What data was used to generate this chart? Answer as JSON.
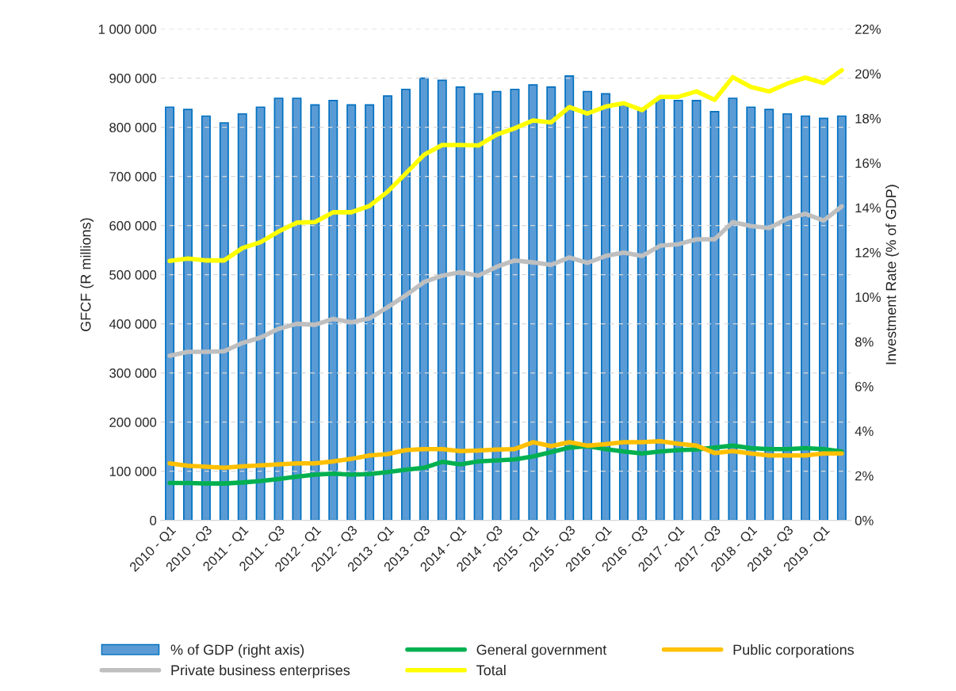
{
  "chart_data": {
    "type": "line",
    "ylabel": "GFCF (R millions)",
    "y2label": "Investment Rate (% of GDP)",
    "categories": [
      "2010 - Q1",
      null,
      "2010 - Q3",
      null,
      "2011 - Q1",
      null,
      "2011 - Q3",
      null,
      "2012 - Q1",
      null,
      "2012 - Q3",
      null,
      "2013 - Q1",
      null,
      "2013 - Q3",
      null,
      "2014 - Q1",
      null,
      "2014 - Q3",
      null,
      "2015 - Q1",
      null,
      "2015 - Q3",
      null,
      "2016 - Q1",
      null,
      "2016 - Q3",
      null,
      "2017 - Q1",
      null,
      "2017 - Q3",
      null,
      "2018 - Q1",
      null,
      "2018 - Q3",
      null,
      "2019 - Q1",
      null
    ],
    "series": [
      {
        "name": "% of GDP (right axis)",
        "type": "bar",
        "axis": "y2",
        "color": "#5b9bd5",
        "values": [
          18.5,
          18.4,
          18.1,
          17.8,
          18.2,
          18.5,
          18.9,
          18.9,
          18.6,
          18.8,
          18.6,
          18.6,
          19.0,
          19.3,
          19.8,
          19.7,
          19.4,
          19.1,
          19.2,
          19.3,
          19.5,
          19.4,
          19.9,
          19.2,
          19.1,
          18.6,
          18.4,
          18.9,
          18.8,
          18.8,
          18.3,
          18.9,
          18.5,
          18.4,
          18.2,
          18.1,
          18.0,
          18.1
        ]
      },
      {
        "name": "General government",
        "color": "#00b050",
        "values": [
          76000,
          76000,
          75000,
          75000,
          77000,
          80000,
          84000,
          89000,
          93000,
          95000,
          93000,
          94000,
          98000,
          103000,
          107000,
          119000,
          114000,
          120000,
          122000,
          124000,
          130000,
          139000,
          148000,
          151000,
          145000,
          140000,
          136000,
          140000,
          143000,
          144000,
          148000,
          152000,
          147000,
          145000,
          145000,
          147000,
          145000,
          140000
        ]
      },
      {
        "name": "Public corporations",
        "color": "#ffc000",
        "values": [
          116000,
          111000,
          109000,
          107000,
          110000,
          112000,
          114000,
          116000,
          116000,
          120000,
          125000,
          132000,
          135000,
          143000,
          145000,
          145000,
          141000,
          142000,
          144000,
          145000,
          159000,
          151000,
          159000,
          152000,
          155000,
          159000,
          159000,
          161000,
          156000,
          152000,
          137000,
          141000,
          136000,
          132000,
          132000,
          132000,
          136000,
          136000
        ]
      },
      {
        "name": "Private business enterprises",
        "color": "#bfbfbf",
        "values": [
          335000,
          343000,
          343000,
          344000,
          361000,
          372000,
          390000,
          400000,
          398000,
          410000,
          403000,
          411000,
          434000,
          458000,
          485000,
          498000,
          505000,
          498000,
          516000,
          529000,
          525000,
          520000,
          535000,
          524000,
          538000,
          545000,
          538000,
          559000,
          562000,
          572000,
          572000,
          607000,
          599000,
          595000,
          614000,
          624000,
          610000,
          639000
        ]
      },
      {
        "name": "Total",
        "color": "#ffff00",
        "values": [
          528000,
          533000,
          529000,
          529000,
          554000,
          566000,
          588000,
          606000,
          607000,
          627000,
          627000,
          640000,
          669000,
          706000,
          744000,
          764000,
          764000,
          763000,
          785000,
          798000,
          814000,
          810000,
          841000,
          828000,
          842000,
          849000,
          835000,
          862000,
          862000,
          873000,
          856000,
          902000,
          882000,
          873000,
          889000,
          901000,
          890000,
          916000
        ]
      }
    ],
    "ylim": [
      0,
      1000000
    ],
    "yticks": [
      0,
      {
        "value": 100000,
        "label": "100 000"
      },
      {
        "value": 200000,
        "label": "200 000"
      },
      {
        "value": 300000,
        "label": "300 000"
      },
      {
        "value": 400000,
        "label": "400 000"
      },
      {
        "value": 500000,
        "label": "500 000"
      },
      {
        "value": 600000,
        "label": "600 000"
      },
      {
        "value": 700000,
        "label": "700 000"
      },
      {
        "value": 800000,
        "label": "800 000"
      },
      {
        "value": 900000,
        "label": "900 000"
      },
      {
        "value": 1000000,
        "label": "1 000 000"
      }
    ],
    "y2lim": [
      0,
      22
    ],
    "y2ticks": [
      {
        "value": 0,
        "label": "0%"
      },
      {
        "value": 2,
        "label": "2%"
      },
      {
        "value": 4,
        "label": "4%"
      },
      {
        "value": 6,
        "label": "6%"
      },
      {
        "value": 8,
        "label": "8%"
      },
      {
        "value": 10,
        "label": "10%"
      },
      {
        "value": 12,
        "label": "12%"
      },
      {
        "value": 14,
        "label": "14%"
      },
      {
        "value": 16,
        "label": "16%"
      },
      {
        "value": 18,
        "label": "18%"
      },
      {
        "value": 20,
        "label": "20%"
      },
      {
        "value": 22,
        "label": "22%"
      }
    ],
    "grid": "y",
    "legend": "bottom",
    "line_style": "solid",
    "marker": "none"
  }
}
